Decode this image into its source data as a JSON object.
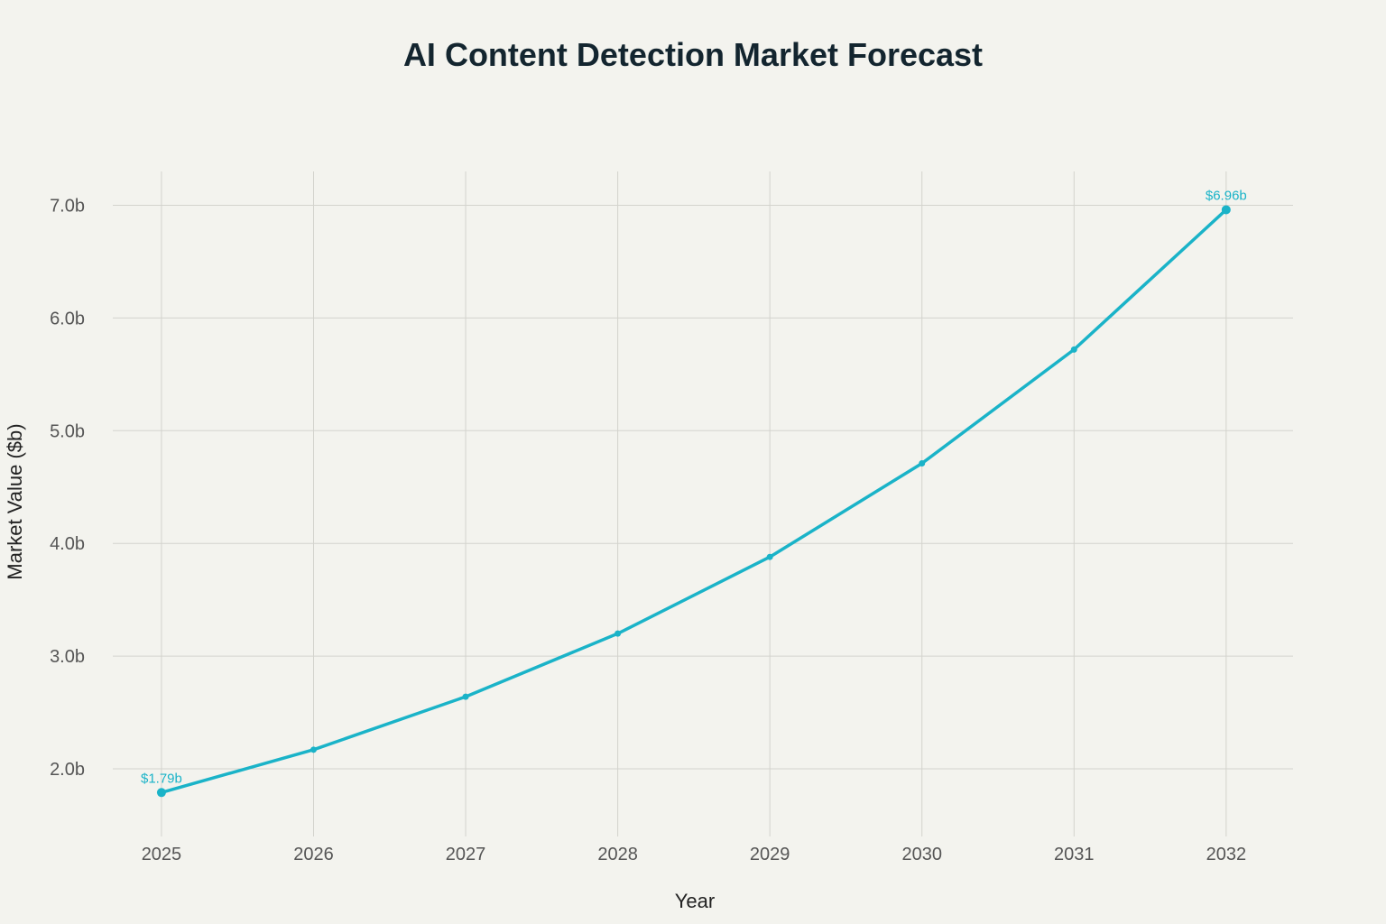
{
  "chart_data": {
    "type": "line",
    "title": "AI Content Detection Market Forecast",
    "xlabel": "Year",
    "ylabel": "Market Value ($b)",
    "x": [
      2025,
      2026,
      2027,
      2028,
      2029,
      2030,
      2031,
      2032
    ],
    "series": [
      {
        "values": [
          1.79,
          2.17,
          2.64,
          3.2,
          3.88,
          4.71,
          5.72,
          6.96
        ],
        "color": "#1ab3c8"
      }
    ],
    "annotations": [
      {
        "x": 2025,
        "text": "$1.79b"
      },
      {
        "x": 2032,
        "text": "$6.96b"
      }
    ],
    "xlim": [
      2024.68,
      2032.44
    ],
    "ylim": [
      1.4,
      7.3
    ],
    "yticks": [
      2,
      3,
      4,
      5,
      6,
      7
    ],
    "ytick_labels": [
      "2.0b",
      "3.0b",
      "4.0b",
      "5.0b",
      "6.0b",
      "7.0b"
    ],
    "xtick_labels": [
      "2025",
      "2026",
      "2027",
      "2028",
      "2029",
      "2030",
      "2031",
      "2032"
    ],
    "grid": true,
    "legend": "none"
  }
}
